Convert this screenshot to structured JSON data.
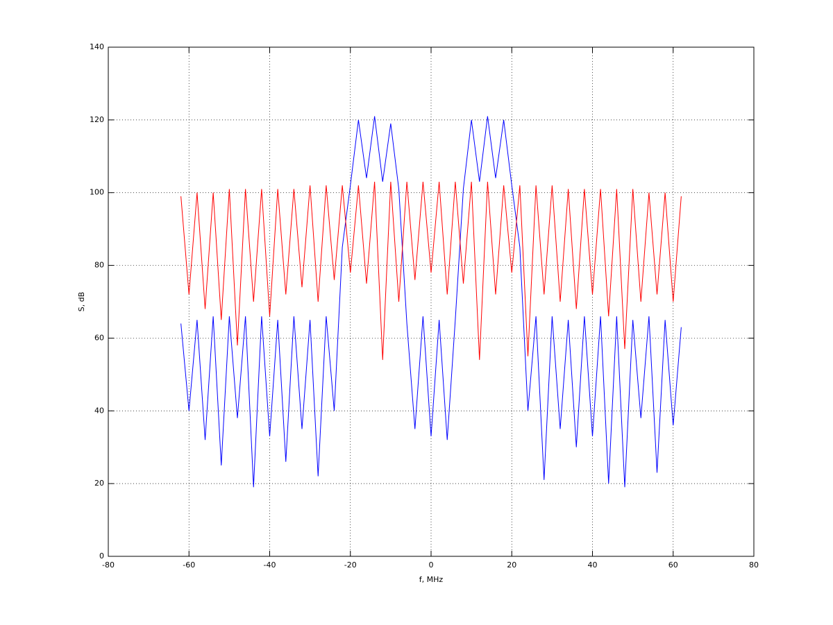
{
  "chart_data": {
    "type": "line",
    "xlabel": "f, MHz",
    "ylabel": "S, dB",
    "x": [
      -62,
      -60,
      -58,
      -56,
      -54,
      -52,
      -50,
      -48,
      -46,
      -44,
      -42,
      -40,
      -38,
      -36,
      -34,
      -32,
      -30,
      -28,
      -26,
      -24,
      -22,
      -20,
      -18,
      -16,
      -14,
      -12,
      -10,
      -8,
      -6,
      -4,
      -2,
      0,
      2,
      4,
      6,
      8,
      10,
      12,
      14,
      16,
      18,
      20,
      22,
      24,
      26,
      28,
      30,
      32,
      34,
      36,
      38,
      40,
      42,
      44,
      46,
      48,
      50,
      52,
      54,
      56,
      58,
      60,
      62
    ],
    "series": [
      {
        "color": "#0000ff",
        "values": [
          64,
          40,
          65,
          32,
          66,
          25,
          66,
          38,
          66,
          19,
          66,
          33,
          65,
          26,
          66,
          35,
          65,
          22,
          66,
          40,
          85,
          102,
          120,
          104,
          121,
          103,
          119,
          101,
          64,
          35,
          66,
          33,
          65,
          32,
          65,
          101,
          120,
          103,
          121,
          104,
          120,
          102,
          85,
          40,
          66,
          21,
          66,
          35,
          65,
          30,
          66,
          33,
          66,
          20,
          66,
          19,
          65,
          38,
          66,
          23,
          65,
          36,
          63
        ]
      },
      {
        "color": "#ff0000",
        "values": [
          99,
          72,
          100,
          68,
          100,
          65,
          101,
          58,
          101,
          70,
          101,
          66,
          101,
          72,
          101,
          74,
          102,
          70,
          102,
          76,
          102,
          78,
          102,
          75,
          103,
          54,
          103,
          70,
          103,
          76,
          103,
          78,
          103,
          72,
          103,
          75,
          103,
          54,
          103,
          72,
          102,
          78,
          102,
          55,
          102,
          72,
          102,
          70,
          101,
          68,
          101,
          72,
          101,
          66,
          101,
          57,
          101,
          70,
          100,
          72,
          100,
          70,
          99
        ]
      }
    ],
    "xlim": [
      -80,
      80
    ],
    "xticks": [
      -80,
      -60,
      -40,
      -20,
      0,
      20,
      40,
      60,
      80
    ],
    "ylim": [
      0,
      140
    ],
    "yticks": [
      0,
      20,
      40,
      60,
      80,
      100,
      120,
      140
    ],
    "grid": true
  }
}
